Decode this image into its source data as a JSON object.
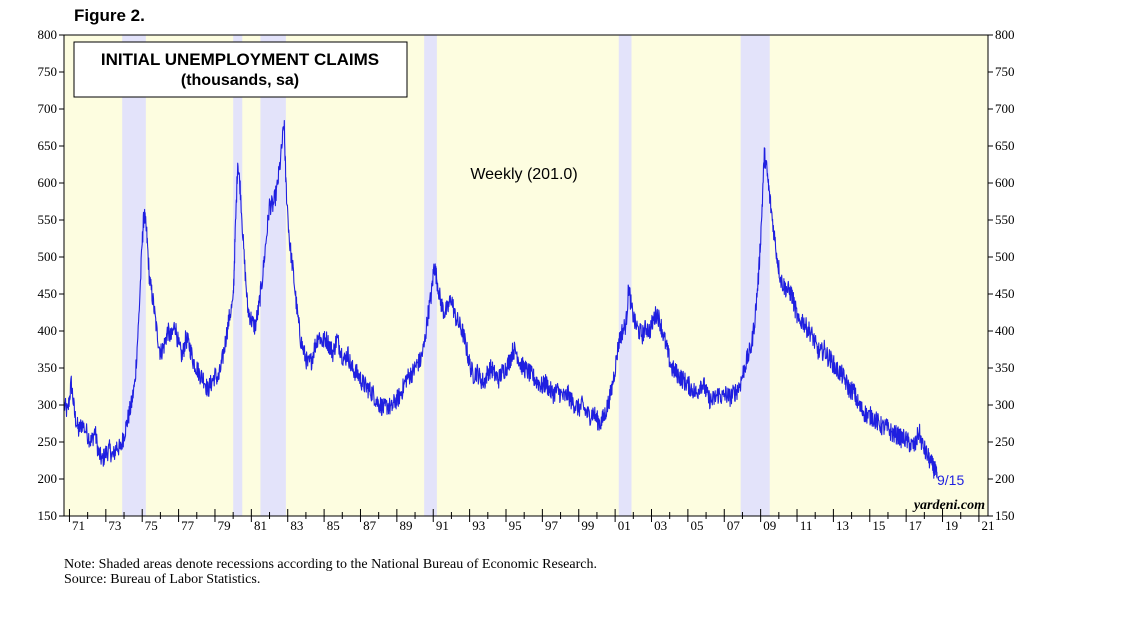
{
  "figure_label": "Figure 2.",
  "chart_data": {
    "type": "line",
    "title": "INITIAL UNEMPLOYMENT CLAIMS",
    "subtitle": "(thousands, sa)",
    "series_label": "Weekly (201.0)",
    "end_label": "9/15",
    "watermark": "yardeni.com",
    "ylim": [
      150,
      800
    ],
    "xlim": [
      1970.7,
      2021.5
    ],
    "y_ticks": [
      150,
      200,
      250,
      300,
      350,
      400,
      450,
      500,
      550,
      600,
      650,
      700,
      750,
      800
    ],
    "x_tick_labels": [
      "71",
      "73",
      "75",
      "77",
      "79",
      "81",
      "83",
      "85",
      "87",
      "89",
      "91",
      "93",
      "95",
      "97",
      "99",
      "01",
      "03",
      "05",
      "07",
      "09",
      "11",
      "13",
      "15",
      "17",
      "19",
      "21"
    ],
    "x_tick_years": [
      1971,
      1973,
      1975,
      1977,
      1979,
      1981,
      1983,
      1985,
      1987,
      1989,
      1991,
      1993,
      1995,
      1997,
      1999,
      2001,
      2003,
      2005,
      2007,
      2009,
      2011,
      2013,
      2015,
      2017,
      2019,
      2021
    ],
    "recessions": [
      {
        "start": 1973.9,
        "end": 1975.2
      },
      {
        "start": 1980.0,
        "end": 1980.5
      },
      {
        "start": 1981.5,
        "end": 1982.9
      },
      {
        "start": 1990.5,
        "end": 1991.2
      },
      {
        "start": 2001.2,
        "end": 2001.9
      },
      {
        "start": 2007.9,
        "end": 2009.5
      }
    ],
    "series": [
      {
        "name": "Weekly",
        "color": "#1f1fe0",
        "points": [
          [
            1970.7,
            300
          ],
          [
            1970.9,
            290
          ],
          [
            1971.1,
            330
          ],
          [
            1971.3,
            285
          ],
          [
            1971.5,
            265
          ],
          [
            1971.7,
            275
          ],
          [
            1972.0,
            260
          ],
          [
            1972.2,
            250
          ],
          [
            1972.4,
            265
          ],
          [
            1972.6,
            235
          ],
          [
            1972.8,
            225
          ],
          [
            1973.0,
            235
          ],
          [
            1973.2,
            240
          ],
          [
            1973.4,
            230
          ],
          [
            1973.6,
            245
          ],
          [
            1973.8,
            240
          ],
          [
            1974.0,
            260
          ],
          [
            1974.2,
            280
          ],
          [
            1974.4,
            300
          ],
          [
            1974.6,
            330
          ],
          [
            1974.8,
            410
          ],
          [
            1975.0,
            520
          ],
          [
            1975.1,
            560
          ],
          [
            1975.25,
            530
          ],
          [
            1975.4,
            470
          ],
          [
            1975.6,
            440
          ],
          [
            1975.8,
            400
          ],
          [
            1976.0,
            370
          ],
          [
            1976.2,
            380
          ],
          [
            1976.4,
            400
          ],
          [
            1976.6,
            390
          ],
          [
            1976.8,
            410
          ],
          [
            1977.0,
            380
          ],
          [
            1977.2,
            365
          ],
          [
            1977.4,
            390
          ],
          [
            1977.6,
            380
          ],
          [
            1977.8,
            360
          ],
          [
            1978.0,
            350
          ],
          [
            1978.2,
            340
          ],
          [
            1978.4,
            335
          ],
          [
            1978.6,
            320
          ],
          [
            1978.8,
            330
          ],
          [
            1979.0,
            340
          ],
          [
            1979.2,
            335
          ],
          [
            1979.4,
            360
          ],
          [
            1979.6,
            390
          ],
          [
            1979.8,
            420
          ],
          [
            1980.0,
            440
          ],
          [
            1980.1,
            520
          ],
          [
            1980.25,
            630
          ],
          [
            1980.4,
            590
          ],
          [
            1980.6,
            500
          ],
          [
            1980.8,
            430
          ],
          [
            1981.0,
            415
          ],
          [
            1981.2,
            405
          ],
          [
            1981.4,
            430
          ],
          [
            1981.6,
            470
          ],
          [
            1981.8,
            520
          ],
          [
            1982.0,
            570
          ],
          [
            1982.2,
            570
          ],
          [
            1982.4,
            590
          ],
          [
            1982.6,
            630
          ],
          [
            1982.8,
            680
          ],
          [
            1982.9,
            600
          ],
          [
            1983.1,
            520
          ],
          [
            1983.3,
            480
          ],
          [
            1983.5,
            430
          ],
          [
            1983.7,
            390
          ],
          [
            1983.9,
            370
          ],
          [
            1984.1,
            355
          ],
          [
            1984.3,
            360
          ],
          [
            1984.5,
            380
          ],
          [
            1984.7,
            395
          ],
          [
            1984.9,
            385
          ],
          [
            1985.1,
            390
          ],
          [
            1985.3,
            380
          ],
          [
            1985.5,
            370
          ],
          [
            1985.7,
            390
          ],
          [
            1985.9,
            375
          ],
          [
            1986.1,
            360
          ],
          [
            1986.3,
            370
          ],
          [
            1986.5,
            350
          ],
          [
            1986.7,
            345
          ],
          [
            1986.9,
            340
          ],
          [
            1987.1,
            330
          ],
          [
            1987.3,
            325
          ],
          [
            1987.5,
            320
          ],
          [
            1987.7,
            315
          ],
          [
            1987.9,
            305
          ],
          [
            1988.1,
            300
          ],
          [
            1988.3,
            295
          ],
          [
            1988.5,
            300
          ],
          [
            1988.7,
            295
          ],
          [
            1988.9,
            305
          ],
          [
            1989.1,
            310
          ],
          [
            1989.3,
            320
          ],
          [
            1989.5,
            335
          ],
          [
            1989.7,
            340
          ],
          [
            1989.9,
            345
          ],
          [
            1990.1,
            355
          ],
          [
            1990.3,
            360
          ],
          [
            1990.5,
            380
          ],
          [
            1990.7,
            420
          ],
          [
            1990.9,
            450
          ],
          [
            1991.05,
            490
          ],
          [
            1991.2,
            470
          ],
          [
            1991.4,
            440
          ],
          [
            1991.6,
            425
          ],
          [
            1991.8,
            430
          ],
          [
            1992.0,
            445
          ],
          [
            1992.2,
            420
          ],
          [
            1992.4,
            410
          ],
          [
            1992.6,
            400
          ],
          [
            1992.8,
            380
          ],
          [
            1993.0,
            355
          ],
          [
            1993.2,
            340
          ],
          [
            1993.4,
            345
          ],
          [
            1993.6,
            335
          ],
          [
            1993.8,
            330
          ],
          [
            1994.0,
            345
          ],
          [
            1994.2,
            350
          ],
          [
            1994.4,
            340
          ],
          [
            1994.6,
            335
          ],
          [
            1994.8,
            345
          ],
          [
            1995.0,
            350
          ],
          [
            1995.2,
            360
          ],
          [
            1995.4,
            375
          ],
          [
            1995.6,
            370
          ],
          [
            1995.8,
            355
          ],
          [
            1996.0,
            350
          ],
          [
            1996.2,
            345
          ],
          [
            1996.4,
            340
          ],
          [
            1996.6,
            335
          ],
          [
            1996.8,
            330
          ],
          [
            1997.0,
            325
          ],
          [
            1997.2,
            330
          ],
          [
            1997.4,
            320
          ],
          [
            1997.6,
            315
          ],
          [
            1997.8,
            320
          ],
          [
            1998.0,
            315
          ],
          [
            1998.2,
            310
          ],
          [
            1998.4,
            315
          ],
          [
            1998.6,
            305
          ],
          [
            1998.8,
            300
          ],
          [
            1999.0,
            295
          ],
          [
            1999.2,
            300
          ],
          [
            1999.4,
            290
          ],
          [
            1999.6,
            285
          ],
          [
            1999.8,
            290
          ],
          [
            2000.0,
            280
          ],
          [
            2000.2,
            275
          ],
          [
            2000.4,
            285
          ],
          [
            2000.6,
            300
          ],
          [
            2000.8,
            320
          ],
          [
            2001.0,
            350
          ],
          [
            2001.2,
            385
          ],
          [
            2001.4,
            400
          ],
          [
            2001.6,
            410
          ],
          [
            2001.75,
            460
          ],
          [
            2001.9,
            430
          ],
          [
            2002.1,
            410
          ],
          [
            2002.3,
            400
          ],
          [
            2002.5,
            395
          ],
          [
            2002.7,
            405
          ],
          [
            2002.9,
            400
          ],
          [
            2003.1,
            415
          ],
          [
            2003.3,
            425
          ],
          [
            2003.5,
            410
          ],
          [
            2003.7,
            390
          ],
          [
            2003.9,
            370
          ],
          [
            2004.1,
            350
          ],
          [
            2004.3,
            345
          ],
          [
            2004.5,
            340
          ],
          [
            2004.7,
            335
          ],
          [
            2004.9,
            330
          ],
          [
            2005.1,
            325
          ],
          [
            2005.3,
            320
          ],
          [
            2005.5,
            315
          ],
          [
            2005.7,
            330
          ],
          [
            2005.9,
            325
          ],
          [
            2006.1,
            310
          ],
          [
            2006.3,
            305
          ],
          [
            2006.5,
            310
          ],
          [
            2006.7,
            315
          ],
          [
            2006.9,
            310
          ],
          [
            2007.1,
            315
          ],
          [
            2007.3,
            310
          ],
          [
            2007.5,
            315
          ],
          [
            2007.7,
            320
          ],
          [
            2007.9,
            330
          ],
          [
            2008.1,
            350
          ],
          [
            2008.3,
            365
          ],
          [
            2008.5,
            380
          ],
          [
            2008.7,
            420
          ],
          [
            2008.9,
            480
          ],
          [
            2009.05,
            550
          ],
          [
            2009.2,
            640
          ],
          [
            2009.35,
            615
          ],
          [
            2009.5,
            580
          ],
          [
            2009.7,
            540
          ],
          [
            2009.9,
            500
          ],
          [
            2010.1,
            470
          ],
          [
            2010.3,
            460
          ],
          [
            2010.5,
            455
          ],
          [
            2010.7,
            450
          ],
          [
            2010.9,
            430
          ],
          [
            2011.1,
            410
          ],
          [
            2011.3,
            415
          ],
          [
            2011.5,
            405
          ],
          [
            2011.7,
            400
          ],
          [
            2011.9,
            390
          ],
          [
            2012.1,
            375
          ],
          [
            2012.3,
            370
          ],
          [
            2012.5,
            375
          ],
          [
            2012.7,
            365
          ],
          [
            2012.9,
            360
          ],
          [
            2013.1,
            350
          ],
          [
            2013.3,
            345
          ],
          [
            2013.5,
            340
          ],
          [
            2013.7,
            330
          ],
          [
            2013.9,
            320
          ],
          [
            2014.1,
            320
          ],
          [
            2014.3,
            305
          ],
          [
            2014.5,
            295
          ],
          [
            2014.7,
            290
          ],
          [
            2014.9,
            285
          ],
          [
            2015.1,
            285
          ],
          [
            2015.3,
            280
          ],
          [
            2015.5,
            275
          ],
          [
            2015.7,
            270
          ],
          [
            2015.9,
            270
          ],
          [
            2016.1,
            265
          ],
          [
            2016.3,
            260
          ],
          [
            2016.5,
            260
          ],
          [
            2016.7,
            255
          ],
          [
            2016.9,
            255
          ],
          [
            2017.1,
            250
          ],
          [
            2017.3,
            245
          ],
          [
            2017.5,
            245
          ],
          [
            2017.7,
            265
          ],
          [
            2017.9,
            245
          ],
          [
            2018.1,
            235
          ],
          [
            2018.3,
            225
          ],
          [
            2018.5,
            215
          ],
          [
            2018.6,
            210
          ],
          [
            2018.7,
            201
          ]
        ]
      }
    ]
  },
  "notes": {
    "line1": "Note: Shaded areas denote recessions according to the National Bureau of Economic Research.",
    "line2": "Source: Bureau of Labor Statistics."
  },
  "colors": {
    "plot_bg": "#fdfde0",
    "recession": "#e3e3fa",
    "line": "#1f1fe0"
  }
}
